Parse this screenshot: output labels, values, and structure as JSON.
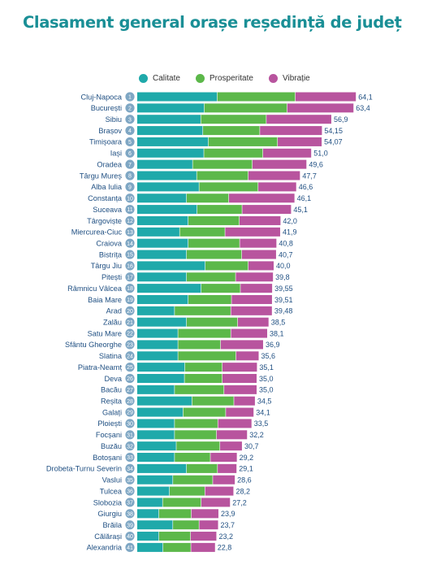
{
  "title": "Clasament general orașe reședință de județ",
  "colors": {
    "title": "#1a8f96",
    "calitate": "#1fa9aa",
    "prosperitate": "#5cb84a",
    "vibratie": "#b8549e",
    "label_text": "#1f4f82",
    "badge": "#7fa7c4"
  },
  "chart_data": {
    "type": "bar",
    "orientation": "horizontal",
    "stacked": true,
    "title": "Clasament general orașe reședință de județ",
    "legend_position": "top",
    "grid": false,
    "series": [
      {
        "name": "Calitate",
        "color": "#1fa9aa",
        "values": [
          23.5,
          19.7,
          18.7,
          19.3,
          20.9,
          19.6,
          16.3,
          17.5,
          18.2,
          14.5,
          17.6,
          15.0,
          12.5,
          15.0,
          14.5,
          20.0,
          14.5,
          18.8,
          15.0,
          11.0,
          14.5,
          12.0,
          12.0,
          12.0,
          14.0,
          13.9,
          11.0,
          16.1,
          13.5,
          11.0,
          11.0,
          11.5,
          11.0,
          14.5,
          10.5,
          9.5,
          7.5,
          6.4,
          10.5,
          6.4,
          7.6
        ]
      },
      {
        "name": "Prosperitate",
        "color": "#5cb84a",
        "values": [
          22.9,
          24.3,
          19.2,
          16.7,
          20.3,
          17.3,
          17.5,
          15.1,
          17.3,
          12.4,
          13.2,
          15.0,
          13.3,
          15.1,
          16.2,
          12.6,
          14.4,
          11.5,
          12.7,
          16.5,
          15.0,
          15.5,
          12.5,
          17.0,
          11.0,
          11.1,
          14.5,
          12.3,
          12.5,
          12.7,
          12.3,
          12.8,
          10.5,
          9.1,
          11.7,
          10.4,
          11.3,
          9.5,
          7.7,
          9.3,
          8.2
        ]
      },
      {
        "name": "Vibrație",
        "color": "#b8549e",
        "values": [
          17.7,
          19.4,
          19.0,
          18.15,
          12.87,
          14.1,
          15.8,
          15.1,
          11.1,
          19.2,
          14.3,
          12.0,
          16.1,
          10.7,
          10.0,
          7.4,
          10.9,
          9.25,
          11.81,
          11.98,
          9.0,
          10.6,
          12.4,
          6.6,
          10.1,
          10.0,
          9.5,
          6.1,
          8.1,
          9.8,
          8.9,
          6.4,
          7.7,
          5.5,
          6.4,
          8.3,
          8.4,
          7.9,
          5.5,
          7.5,
          7.0
        ]
      }
    ],
    "rows": [
      {
        "rank": "1",
        "city": "Cluj-Napoca",
        "total": "64,1"
      },
      {
        "rank": "2",
        "city": "București",
        "total": "63,4"
      },
      {
        "rank": "3",
        "city": "Sibiu",
        "total": "56,9"
      },
      {
        "rank": "4",
        "city": "Brașov",
        "total": "54,15"
      },
      {
        "rank": "5",
        "city": "Timișoara",
        "total": "54,07"
      },
      {
        "rank": "6",
        "city": "Iași",
        "total": "51,0"
      },
      {
        "rank": "7",
        "city": "Oradea",
        "total": "49,6"
      },
      {
        "rank": "8",
        "city": "Târgu Mureș",
        "total": "47,7"
      },
      {
        "rank": "9",
        "city": "Alba Iulia",
        "total": "46,6"
      },
      {
        "rank": "10",
        "city": "Constanța",
        "total": "46,1"
      },
      {
        "rank": "11",
        "city": "Suceava",
        "total": "45,1"
      },
      {
        "rank": "12",
        "city": "Târgoviște",
        "total": "42,0"
      },
      {
        "rank": "13",
        "city": "Miercurea-Ciuc",
        "total": "41,9"
      },
      {
        "rank": "14",
        "city": "Craiova",
        "total": "40,8"
      },
      {
        "rank": "15",
        "city": "Bistrița",
        "total": "40,7"
      },
      {
        "rank": "16",
        "city": "Târgu Jiu",
        "total": "40,0"
      },
      {
        "rank": "17",
        "city": "Pitești",
        "total": "39,8"
      },
      {
        "rank": "18",
        "city": "Râmnicu Vâlcea",
        "total": "39,55"
      },
      {
        "rank": "19",
        "city": "Baia Mare",
        "total": "39,51"
      },
      {
        "rank": "20",
        "city": "Arad",
        "total": "39,48"
      },
      {
        "rank": "21",
        "city": "Zalău",
        "total": "38,5"
      },
      {
        "rank": "22",
        "city": "Satu Mare",
        "total": "38,1"
      },
      {
        "rank": "23",
        "city": "Sfântu Gheorghe",
        "total": "36,9"
      },
      {
        "rank": "24",
        "city": "Slatina",
        "total": "35,6"
      },
      {
        "rank": "25",
        "city": "Piatra-Neamț",
        "total": "35,1"
      },
      {
        "rank": "26",
        "city": "Deva",
        "total": "35,0"
      },
      {
        "rank": "27",
        "city": "Bacău",
        "total": "35,0"
      },
      {
        "rank": "28",
        "city": "Reșita",
        "total": "34,5"
      },
      {
        "rank": "29",
        "city": "Galați",
        "total": "34,1"
      },
      {
        "rank": "30",
        "city": "Ploiești",
        "total": "33,5"
      },
      {
        "rank": "31",
        "city": "Focșani",
        "total": "32,2"
      },
      {
        "rank": "32",
        "city": "Buzău",
        "total": "30,7"
      },
      {
        "rank": "33",
        "city": "Botoșani",
        "total": "29,2"
      },
      {
        "rank": "34",
        "city": "Drobeta-Turnu Severin",
        "total": "29,1"
      },
      {
        "rank": "35",
        "city": "Vaslui",
        "total": "28,6"
      },
      {
        "rank": "36",
        "city": "Tulcea",
        "total": "28,2"
      },
      {
        "rank": "37",
        "city": "Slobozia",
        "total": "27,2"
      },
      {
        "rank": "38",
        "city": "Giurgiu",
        "total": "23,9"
      },
      {
        "rank": "39",
        "city": "Brăila",
        "total": "23,7"
      },
      {
        "rank": "40",
        "city": "Călărași",
        "total": "23,2"
      },
      {
        "rank": "41",
        "city": "Alexandria",
        "total": "22,8"
      }
    ]
  }
}
